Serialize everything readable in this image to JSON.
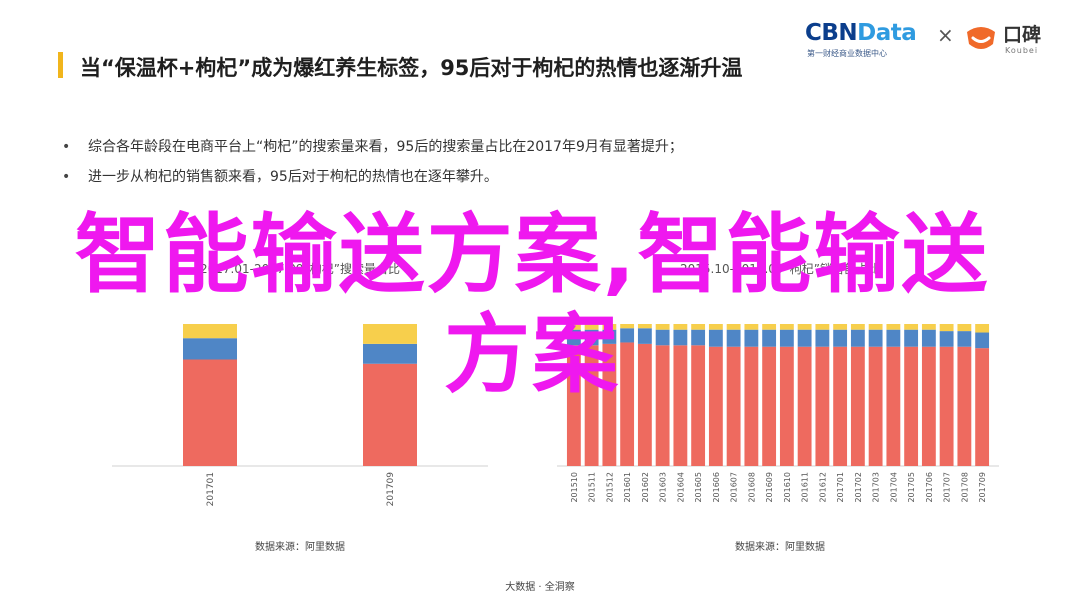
{
  "title": "当“保温杯+枸杞”成为爆红养生标签，95后对于枸杞的热情也逐渐升温",
  "logo": {
    "cbn_main": "CBN",
    "cbn_data": "Data",
    "cbn_sub": "第一财经商业数据中心",
    "times": "×",
    "koubei": "口碑",
    "koubei_sub": "Koubei"
  },
  "bullets": [
    "综合各年龄段在电商平台上“枸杞”的搜索量来看，95后的搜索量占比在2017年9月有显著提升；",
    "进一步从枸杞的销售额来看，95后对于枸杞的热情也在逐年攀升。"
  ],
  "overlay_text": "智能输送方案,智能输送方案",
  "charts": [
    {
      "title": "2017.01-2017.09“枸杞”搜索量占比",
      "source": "数据来源：阿里数据"
    },
    {
      "title": "2015.10-2017.09“枸杞”销售额占比",
      "source": "数据来源：阿里数据"
    }
  ],
  "footer": "大数据 · 全洞察",
  "colors": {
    "red": "#ee6a5f",
    "blue": "#4f86c6",
    "yellow": "#f7cf4c",
    "overlay": "#ef18ef",
    "accent": "#f1b51c"
  },
  "chart_data": [
    {
      "type": "bar",
      "stacked": true,
      "categories": [
        "201701",
        "201709"
      ],
      "series": [
        {
          "values": [
            75,
            72
          ]
        },
        {
          "values": [
            15,
            14
          ]
        },
        {
          "values": [
            10,
            14
          ]
        }
      ],
      "ylim": [
        0,
        100
      ]
    },
    {
      "type": "bar",
      "stacked": true,
      "categories": [
        "201510",
        "201511",
        "201512",
        "201601",
        "201602",
        "201603",
        "201604",
        "201605",
        "201606",
        "201607",
        "201608",
        "201609",
        "201610",
        "201611",
        "201612",
        "201701",
        "201702",
        "201703",
        "201704",
        "201705",
        "201706",
        "201707",
        "201708",
        "201709"
      ],
      "series": [
        {
          "values": [
            85,
            85,
            86,
            87,
            86,
            85,
            85,
            85,
            84,
            84,
            84,
            84,
            84,
            84,
            84,
            84,
            84,
            84,
            84,
            84,
            84,
            84,
            84,
            83
          ]
        },
        {
          "values": [
            11,
            11,
            10,
            10,
            11,
            11,
            11,
            11,
            12,
            12,
            12,
            12,
            12,
            12,
            12,
            12,
            12,
            12,
            12,
            12,
            12,
            11,
            11,
            11
          ]
        },
        {
          "values": [
            4,
            4,
            4,
            3,
            3,
            4,
            4,
            4,
            4,
            4,
            4,
            4,
            4,
            4,
            4,
            4,
            4,
            4,
            4,
            4,
            4,
            5,
            5,
            6
          ]
        }
      ],
      "ylim": [
        0,
        100
      ]
    }
  ]
}
